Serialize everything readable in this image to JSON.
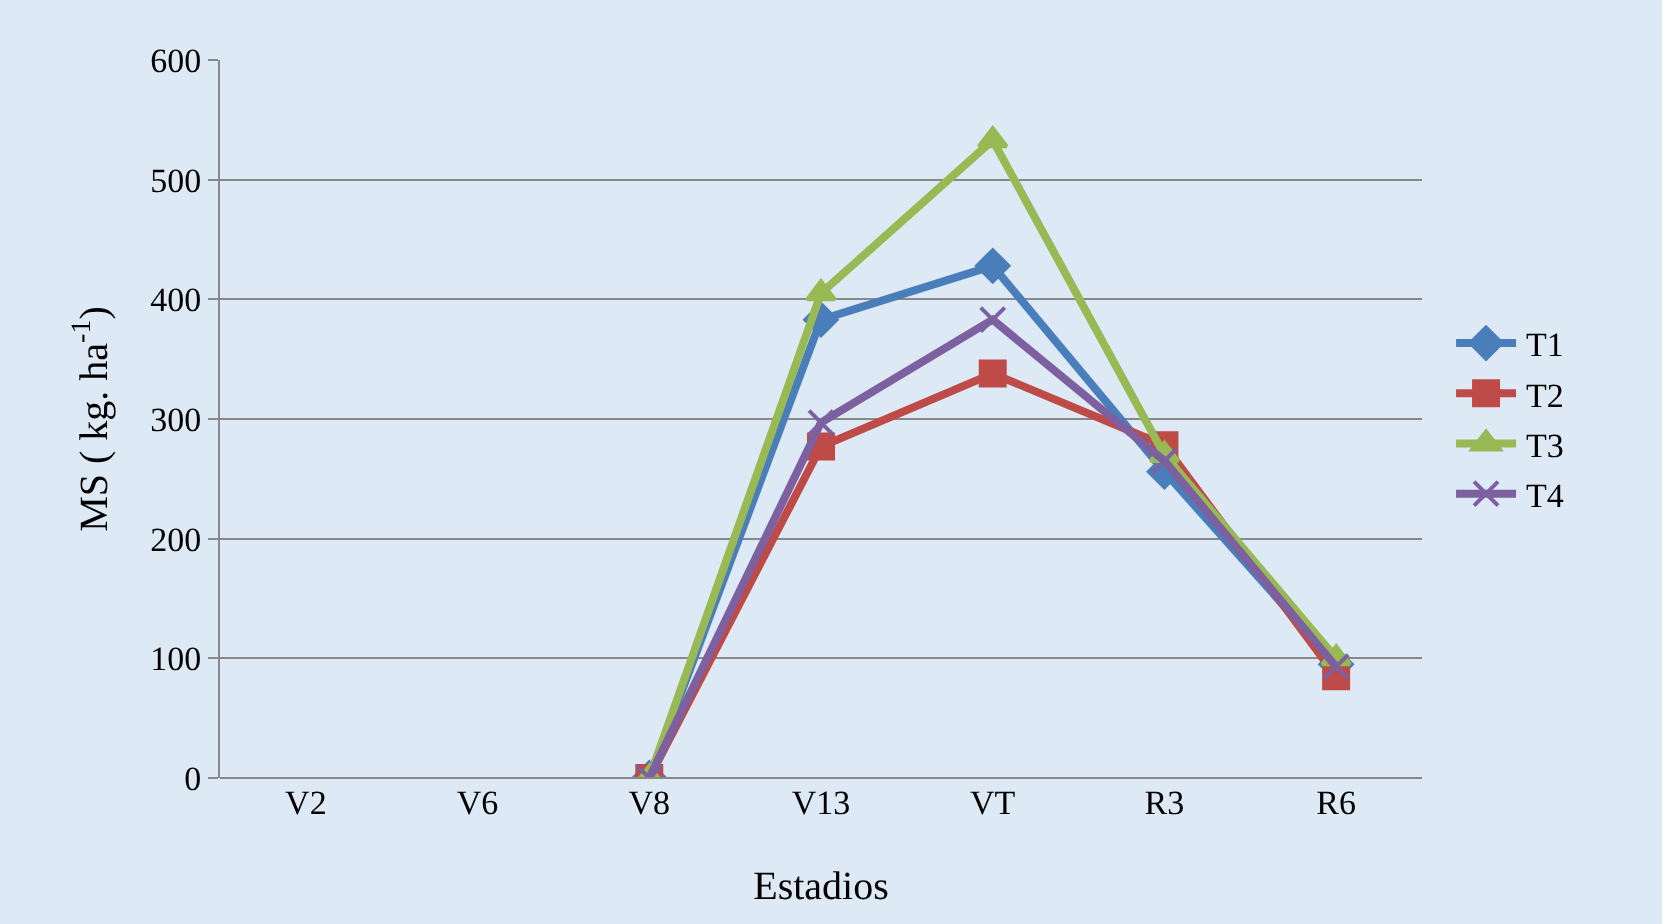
{
  "chart_data": {
    "type": "line",
    "xlabel": "Estadios",
    "ylabel": "MS ( kg. ha$^{-1}$)",
    "categories": [
      "V2",
      "V6",
      "V8",
      "V13",
      "VT",
      "R3",
      "R6"
    ],
    "series": [
      {
        "name": "T1",
        "color": "#4a7ebb",
        "marker": "diamond",
        "values": [
          null,
          null,
          0,
          383,
          428,
          256,
          95
        ]
      },
      {
        "name": "T2",
        "color": "#be4b48",
        "marker": "square",
        "values": [
          null,
          null,
          0,
          277,
          338,
          278,
          85
        ]
      },
      {
        "name": "T3",
        "color": "#98b954",
        "marker": "triangle",
        "values": [
          null,
          null,
          0,
          405,
          533,
          270,
          100
        ]
      },
      {
        "name": "T4",
        "color": "#7d60a0",
        "marker": "cross",
        "values": [
          null,
          null,
          0,
          297,
          383,
          265,
          93
        ]
      }
    ],
    "ylim": [
      0,
      600
    ],
    "yticks": [
      0,
      100,
      200,
      300,
      400,
      500,
      600
    ],
    "grid": "y",
    "legend": "right"
  }
}
